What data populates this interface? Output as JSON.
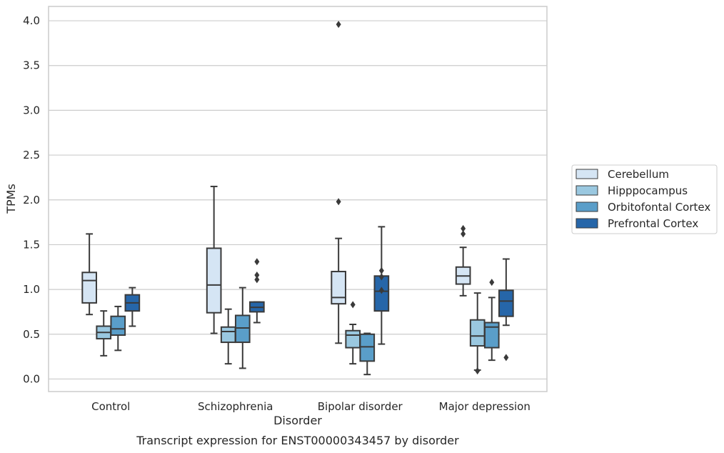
{
  "caption": "Transcript expression for ENST00000343457 by disorder",
  "chart_data": {
    "type": "box",
    "title": "",
    "xlabel": "Disorder",
    "ylabel": "TPMs",
    "ylim": [
      -0.14,
      4.16
    ],
    "yticks": [
      "0.0",
      "0.5",
      "1.0",
      "1.5",
      "2.0",
      "2.5",
      "3.0",
      "3.5",
      "4.0"
    ],
    "grid": "horizontal",
    "legend_position": "right",
    "categories": [
      "Control",
      "Schizophrenia",
      "Bipolar disorder",
      "Major depression"
    ],
    "series": [
      {
        "name": "Cerebellum",
        "color": "#d5e5f4",
        "boxes": [
          {
            "whislo": 0.72,
            "q1": 0.85,
            "med": 1.1,
            "q3": 1.19,
            "whishi": 1.62,
            "fliers": []
          },
          {
            "whislo": 0.51,
            "q1": 0.74,
            "med": 1.05,
            "q3": 1.46,
            "whishi": 2.15,
            "fliers": []
          },
          {
            "whislo": 0.4,
            "q1": 0.84,
            "med": 0.91,
            "q3": 1.2,
            "whishi": 1.57,
            "fliers": [
              1.98,
              3.96
            ]
          },
          {
            "whislo": 0.93,
            "q1": 1.06,
            "med": 1.15,
            "q3": 1.25,
            "whishi": 1.47,
            "fliers": [
              1.62,
              1.68
            ]
          }
        ]
      },
      {
        "name": "Hipppocampus",
        "color": "#9ac8e0",
        "boxes": [
          {
            "whislo": 0.26,
            "q1": 0.45,
            "med": 0.52,
            "q3": 0.59,
            "whishi": 0.76,
            "fliers": []
          },
          {
            "whislo": 0.17,
            "q1": 0.41,
            "med": 0.53,
            "q3": 0.58,
            "whishi": 0.78,
            "fliers": []
          },
          {
            "whislo": 0.17,
            "q1": 0.35,
            "med": 0.49,
            "q3": 0.54,
            "whishi": 0.61,
            "fliers": [
              0.83
            ]
          },
          {
            "whislo": 0.1,
            "q1": 0.37,
            "med": 0.48,
            "q3": 0.66,
            "whishi": 0.96,
            "fliers": [
              0.09
            ]
          }
        ]
      },
      {
        "name": "Orbitofontal Cortex",
        "color": "#5a9ec9",
        "boxes": [
          {
            "whislo": 0.32,
            "q1": 0.49,
            "med": 0.56,
            "q3": 0.7,
            "whishi": 0.81,
            "fliers": []
          },
          {
            "whislo": 0.12,
            "q1": 0.41,
            "med": 0.57,
            "q3": 0.71,
            "whishi": 1.02,
            "fliers": []
          },
          {
            "whislo": 0.05,
            "q1": 0.2,
            "med": 0.36,
            "q3": 0.5,
            "whishi": 0.51,
            "fliers": []
          },
          {
            "whislo": 0.21,
            "q1": 0.35,
            "med": 0.58,
            "q3": 0.63,
            "whishi": 0.91,
            "fliers": [
              1.08
            ]
          }
        ]
      },
      {
        "name": "Prefrontal Cortex",
        "color": "#2666a9",
        "boxes": [
          {
            "whislo": 0.59,
            "q1": 0.76,
            "med": 0.85,
            "q3": 0.94,
            "whishi": 1.02,
            "fliers": []
          },
          {
            "whislo": 0.63,
            "q1": 0.75,
            "med": 0.8,
            "q3": 0.86,
            "whishi": 0.86,
            "fliers": [
              1.11,
              1.16,
              1.31
            ]
          },
          {
            "whislo": 0.39,
            "q1": 0.76,
            "med": 0.98,
            "q3": 1.15,
            "whishi": 1.7,
            "fliers": [
              0.99,
              1.14,
              1.21
            ]
          },
          {
            "whislo": 0.6,
            "q1": 0.7,
            "med": 0.87,
            "q3": 0.99,
            "whishi": 1.34,
            "fliers": [
              0.24
            ]
          }
        ]
      }
    ]
  }
}
